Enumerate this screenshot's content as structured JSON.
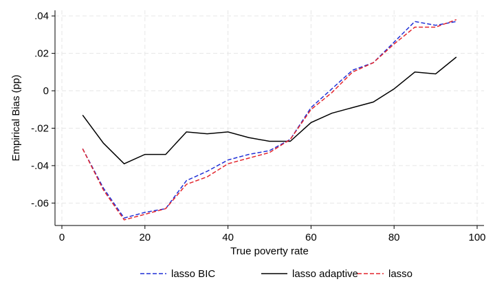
{
  "chart_data": {
    "type": "line",
    "xlabel": "True poverty rate",
    "ylabel": "Empirical Bias (pp)",
    "xlim": [
      0,
      100
    ],
    "ylim": [
      -0.072,
      0.043
    ],
    "x_ticks": [
      0,
      20,
      40,
      60,
      80,
      100
    ],
    "x_tick_labels": [
      "0",
      "20",
      "40",
      "60",
      "80",
      "100"
    ],
    "y_ticks": [
      0.04,
      0.02,
      0,
      -0.02,
      -0.04,
      -0.06
    ],
    "y_tick_labels": [
      ".04",
      ".02",
      "0",
      "-.02",
      "-.04",
      "-.06"
    ],
    "grid": true,
    "legend_position": "bottom",
    "x": [
      5,
      10,
      15,
      20,
      25,
      30,
      35,
      40,
      45,
      50,
      55,
      60,
      65,
      70,
      75,
      80,
      85,
      90,
      95
    ],
    "series": [
      {
        "name": "lasso BIC",
        "color": "#1f2fd6",
        "dash": "dashed",
        "values": [
          -0.031,
          -0.052,
          -0.068,
          -0.065,
          -0.063,
          -0.048,
          -0.043,
          -0.037,
          -0.034,
          -0.032,
          -0.026,
          -0.009,
          0.001,
          0.011,
          0.015,
          0.026,
          0.037,
          0.035,
          0.037
        ]
      },
      {
        "name": "lasso adaptive",
        "color": "#000000",
        "dash": "solid",
        "values": [
          -0.013,
          -0.028,
          -0.039,
          -0.034,
          -0.034,
          -0.022,
          -0.023,
          -0.022,
          -0.025,
          -0.027,
          -0.027,
          -0.017,
          -0.012,
          -0.009,
          -0.006,
          0.001,
          0.01,
          0.009,
          0.018
        ]
      },
      {
        "name": "lasso",
        "color": "#e3242b",
        "dash": "dashed",
        "values": [
          -0.031,
          -0.053,
          -0.069,
          -0.066,
          -0.063,
          -0.05,
          -0.046,
          -0.039,
          -0.036,
          -0.033,
          -0.026,
          -0.01,
          -0.001,
          0.01,
          0.015,
          0.025,
          0.034,
          0.034,
          0.038
        ]
      }
    ]
  }
}
